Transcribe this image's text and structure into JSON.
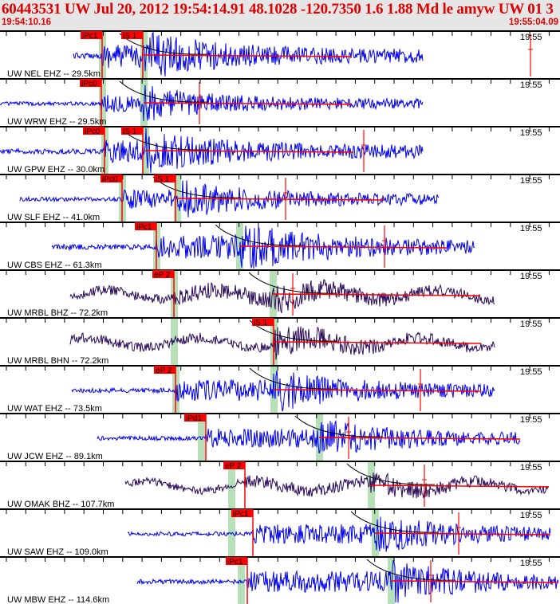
{
  "header": {
    "title": "60443531 UW Jul 20, 2012 19:54:14.91    48.1028 -120.7350  1.6 1.88 Md le amyw UW 01    3",
    "start_time": "19:54:10.16",
    "end_time": "19:55:04.09"
  },
  "colors": {
    "header_text": "#e00000",
    "trace_short_period": "#0000ee",
    "trace_broadband": "#2a0a5a",
    "pick": "#ff0000",
    "predicted_window": "#b8e0b8"
  },
  "traces": [
    {
      "label": "UW NEL EHZ -- 29.5km",
      "time": "19:55",
      "picks": [
        "iPc1",
        "iS 1"
      ]
    },
    {
      "label": "UW WRW EHZ -- 29.5km",
      "time": "19:55",
      "picks": [
        "iPc0"
      ]
    },
    {
      "label": "UW GPW EHZ -- 30.0km",
      "time": "19:55",
      "picks": [
        "iPc0",
        "iS 1"
      ]
    },
    {
      "label": "UW SLF EHZ -- 41.0km",
      "time": "19:55",
      "picks": [
        "iPc0",
        "iS 1"
      ]
    },
    {
      "label": "UW CBS EHZ -- 61.3km",
      "time": "19:55",
      "picks": [
        "iPc1"
      ]
    },
    {
      "label": "UW MRBL BHZ -- 72.2km",
      "time": "19:55",
      "picks": [
        "eP 2"
      ]
    },
    {
      "label": "UW MRBL BHN -- 72.2km",
      "time": "19:55",
      "picks": [
        "iS 1"
      ]
    },
    {
      "label": "UW WAT EHZ -- 73.5km",
      "time": "19:55",
      "picks": [
        "eP 2"
      ]
    },
    {
      "label": "UW JCW EHZ -- 89.1km",
      "time": "19:55",
      "picks": [
        "iPd1"
      ]
    },
    {
      "label": "UW OMAK BHZ -- 107.7km",
      "time": "19:55",
      "picks": [
        "eP 2"
      ]
    },
    {
      "label": "UW SAW EHZ -- 109.0km",
      "time": "19:55",
      "picks": [
        "iPc1"
      ]
    },
    {
      "label": "UW MBW EHZ -- 114.6km",
      "time": "19:55",
      "picks": [
        "iPc1"
      ]
    }
  ]
}
